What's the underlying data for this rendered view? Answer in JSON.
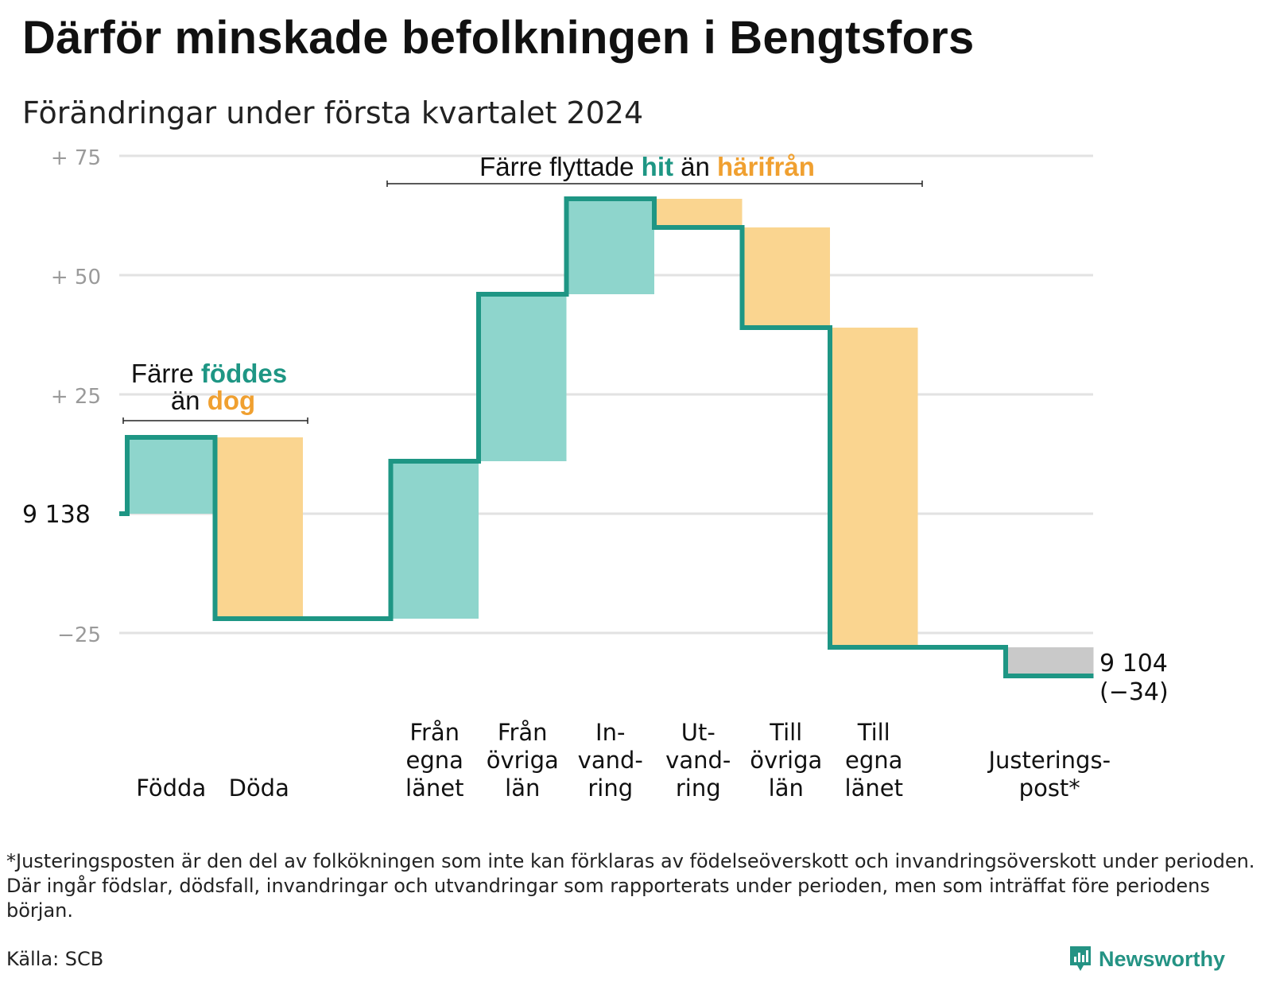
{
  "title": "Därför minskade befolkningen i Bengtsfors",
  "subtitle": "Förändringar under första kvartalet 2024",
  "footnote": "*Justeringsposten är den del av folkökningen som inte kan förklaras av födelseöverskott och invandringsöverskott under perioden. Där ingår födslar, dödsfall, invandringar och utvandringar som rapporterats under perioden, men som inträffat före periodens början.",
  "source": "Källa: SCB",
  "logo_text": "Newsworthy",
  "colors": {
    "increase_fill": "#8ed5cc",
    "decrease_fill": "#fad590",
    "adjustment_fill": "#c9c9c9",
    "line": "#1e9684",
    "teal_text": "#1e9684",
    "orange_text": "#f0a030",
    "grid": "#e2e2e2",
    "tick_text": "#9a9a9a"
  },
  "annotations": {
    "births": {
      "line1_prefix": "Färre",
      "line1_highlight": "föddes",
      "line2_prefix": "än",
      "line2_highlight": "dog"
    },
    "moves": {
      "prefix": "Färre flyttade",
      "highlight1": "hit",
      "middle": "än",
      "highlight2": "härifrån"
    }
  },
  "chart_data": {
    "type": "waterfall",
    "start": {
      "label": "9 138",
      "value": 9138
    },
    "end": {
      "label": "9 104",
      "change_label": "(−34)",
      "value": 9104
    },
    "yaxis": {
      "ticks": [
        {
          "value": 75,
          "label": "+ 75"
        },
        {
          "value": 50,
          "label": "+ 50"
        },
        {
          "value": 25,
          "label": "+ 25"
        },
        {
          "value": 0,
          "label": "9 138"
        },
        {
          "value": -25,
          "label": "−25"
        }
      ],
      "ylim": [
        -30,
        75
      ],
      "grid": true
    },
    "steps": [
      {
        "label": [
          "Födda"
        ],
        "change": 16,
        "kind": "increase"
      },
      {
        "label": [
          "Döda"
        ],
        "change": -38,
        "kind": "decrease"
      },
      {
        "label": [],
        "change": 0,
        "kind": "gap"
      },
      {
        "label": [
          "Från",
          "egna",
          "länet"
        ],
        "change": 33,
        "kind": "increase"
      },
      {
        "label": [
          "Från",
          "övriga",
          "län"
        ],
        "change": 35,
        "kind": "increase"
      },
      {
        "label": [
          "In-",
          "vand-",
          "ring"
        ],
        "change": 20,
        "kind": "increase"
      },
      {
        "label": [
          "Ut-",
          "vand-",
          "ring"
        ],
        "change": -6,
        "kind": "decrease"
      },
      {
        "label": [
          "Till",
          "övriga",
          "län"
        ],
        "change": -21,
        "kind": "decrease"
      },
      {
        "label": [
          "Till",
          "egna",
          "länet"
        ],
        "change": -67,
        "kind": "decrease"
      },
      {
        "label": [],
        "change": 0,
        "kind": "gap"
      },
      {
        "label": [
          "Justerings-",
          "post*"
        ],
        "change": -6,
        "kind": "adjustment"
      }
    ]
  }
}
